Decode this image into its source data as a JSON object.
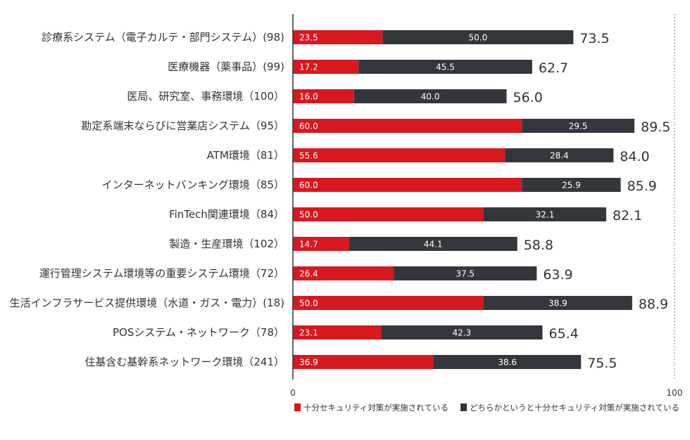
{
  "chart_data": {
    "type": "bar",
    "orientation": "horizontal",
    "stacked": true,
    "categories": [
      "診療系システム（電子カルテ・部門システム）(98)",
      "医療機器（薬事品）(99)",
      "医局、研究室、事務環境（100）",
      "勘定系端末ならびに営業店システム（95）",
      "ATM環境（81）",
      "インターネットバンキング環境（85）",
      "FinTech関連環境（84）",
      "製造・生産環境（102）",
      "運行管理システム環境等の重要システム環境（72）",
      "生活インフラサービス提供環境（水道・ガス・電力）(18)",
      "POSシステム・ネットワーク（78）",
      "住基含む基幹系ネットワーク環境（241）"
    ],
    "series": [
      {
        "name": "十分セキュリティ対策が実施されている",
        "color": "#d7181f",
        "values": [
          23.5,
          17.2,
          16.0,
          60.0,
          55.6,
          60.0,
          50.0,
          14.7,
          26.4,
          50.0,
          23.1,
          36.9
        ]
      },
      {
        "name": "どちらかというと十分セキュリティ対策が実施されている",
        "color": "#33373d",
        "values": [
          50.0,
          45.5,
          40.0,
          29.5,
          28.4,
          25.9,
          32.1,
          44.1,
          37.5,
          38.9,
          42.3,
          38.6
        ]
      }
    ],
    "totals": [
      73.5,
      62.7,
      56.0,
      89.5,
      84.0,
      85.9,
      82.1,
      58.8,
      63.9,
      88.9,
      65.4,
      75.5
    ],
    "xlim": [
      0,
      100
    ],
    "x_ticks": [
      "0",
      "100"
    ],
    "legend_position": "bottom-right",
    "grid": false
  }
}
